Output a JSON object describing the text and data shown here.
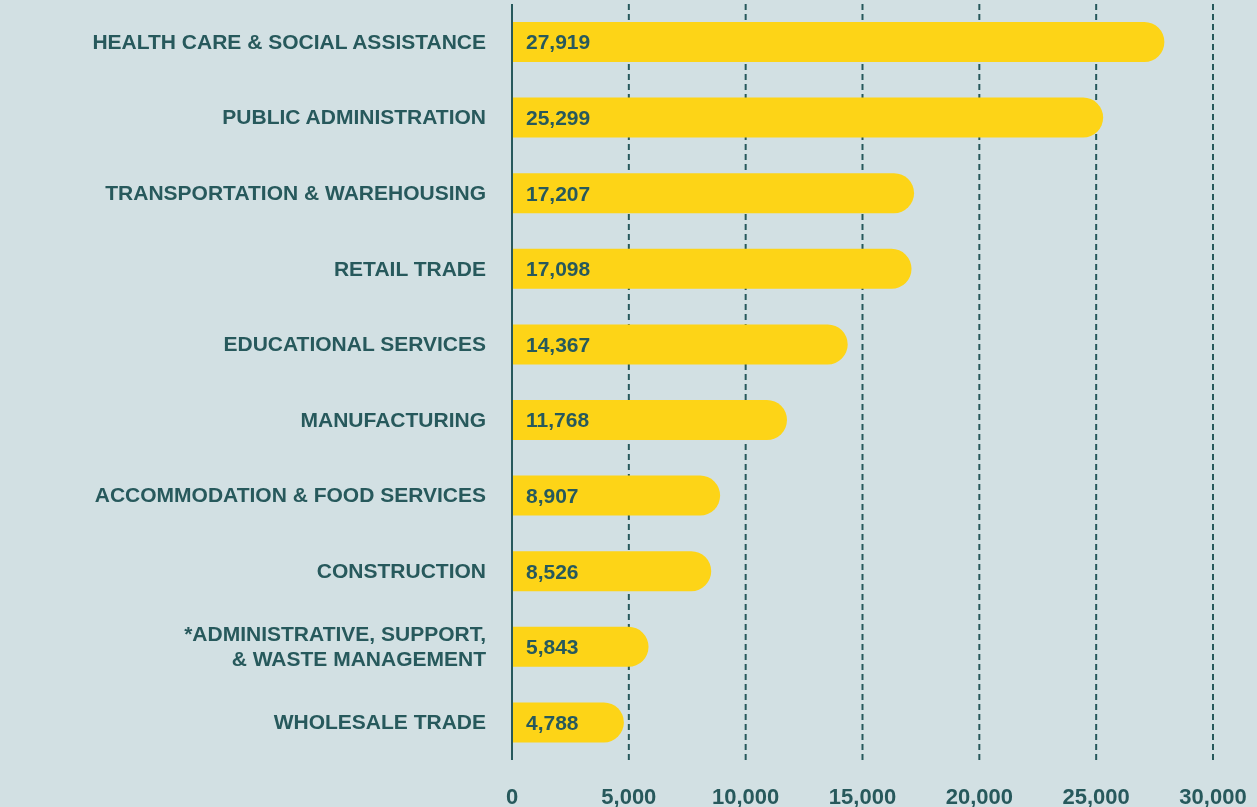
{
  "chart_data": {
    "type": "bar",
    "orientation": "horizontal",
    "categories": [
      "HEALTH CARE & SOCIAL ASSISTANCE",
      "PUBLIC ADMINISTRATION",
      "TRANSPORTATION & WAREHOUSING",
      "RETAIL TRADE",
      "EDUCATIONAL SERVICES",
      "MANUFACTURING",
      "ACCOMMODATION & FOOD SERVICES",
      "CONSTRUCTION",
      "*ADMINISTRATIVE, SUPPORT,\n& WASTE MANAGEMENT",
      "WHOLESALE TRADE"
    ],
    "values": [
      27919,
      25299,
      17207,
      17098,
      14367,
      11768,
      8907,
      8526,
      5843,
      4788
    ],
    "value_labels": [
      "27,919",
      "25,299",
      "17,207",
      "17,098",
      "14,367",
      "11,768",
      "8,907",
      "8,526",
      "5,843",
      "4,788"
    ],
    "color": "#fdd417",
    "xlim": [
      0,
      30000
    ],
    "xticks": [
      0,
      {
        "value": 5000,
        "label": "5,000"
      },
      {
        "value": 10000,
        "label": "10,000"
      },
      {
        "value": 15000,
        "label": "15,000"
      },
      {
        "value": 20000,
        "label": "20,000"
      },
      {
        "value": 25000,
        "label": "25,000"
      },
      {
        "value": 30000,
        "label": "30,000"
      }
    ],
    "grid": "x"
  }
}
